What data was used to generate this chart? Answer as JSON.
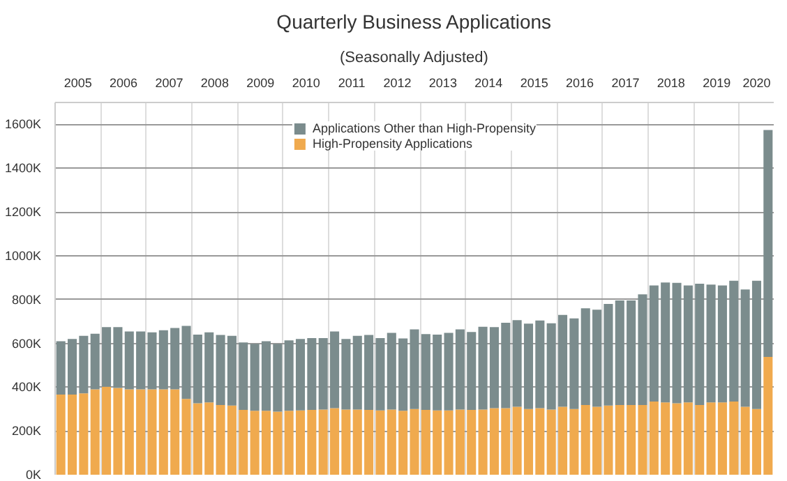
{
  "chart_data": {
    "type": "bar",
    "title": "Quarterly Business Applications",
    "subtitle": "(Seasonally Adjusted)",
    "x": [
      2005.125,
      2005.375,
      2005.625,
      2005.875,
      2006.125,
      2006.375,
      2006.625,
      2006.875,
      2007.125,
      2007.375,
      2007.625,
      2007.875,
      2008.125,
      2008.375,
      2008.625,
      2008.875,
      2009.125,
      2009.375,
      2009.625,
      2009.875,
      2010.125,
      2010.375,
      2010.625,
      2010.875,
      2011.125,
      2011.375,
      2011.625,
      2011.875,
      2012.125,
      2012.375,
      2012.625,
      2012.875,
      2013.125,
      2013.375,
      2013.625,
      2013.875,
      2014.125,
      2014.375,
      2014.625,
      2014.875,
      2015.125,
      2015.375,
      2015.625,
      2015.875,
      2016.125,
      2016.375,
      2016.625,
      2016.875,
      2017.125,
      2017.375,
      2017.625,
      2017.875,
      2018.125,
      2018.375,
      2018.625,
      2018.875,
      2019.125,
      2019.375,
      2019.625,
      2019.875,
      2020.125,
      2020.375,
      2020.625
    ],
    "stacked": true,
    "series": [
      {
        "name": "High-Propensity Applications",
        "color": "#f0aa4e",
        "values": [
          366,
          366,
          372,
          390,
          402,
          396,
          390,
          390,
          390,
          390,
          390,
          346,
          326,
          330,
          318,
          316,
          296,
          292,
          292,
          288,
          292,
          294,
          296,
          298,
          304,
          298,
          298,
          296,
          294,
          298,
          292,
          300,
          296,
          294,
          294,
          298,
          296,
          298,
          304,
          304,
          310,
          300,
          304,
          298,
          310,
          300,
          318,
          310,
          316,
          318,
          318,
          318,
          334,
          330,
          326,
          330,
          318,
          330,
          330,
          334,
          310,
          300,
          538
        ]
      },
      {
        "name": "Applications Other than High-Propensity",
        "color": "#7b8c8d",
        "values": [
          244,
          254,
          262,
          254,
          272,
          278,
          264,
          264,
          260,
          270,
          280,
          334,
          314,
          320,
          320,
          318,
          308,
          306,
          318,
          310,
          322,
          326,
          328,
          326,
          350,
          322,
          336,
          342,
          330,
          350,
          330,
          364,
          346,
          346,
          354,
          366,
          356,
          378,
          370,
          390,
          396,
          390,
          400,
          394,
          420,
          414,
          442,
          444,
          464,
          478,
          478,
          506,
          530,
          548,
          550,
          534,
          554,
          538,
          534,
          552,
          536,
          586,
          1036
        ]
      }
    ],
    "xlim": [
      2005,
      2020.75
    ],
    "xticks": [
      {
        "value": 2005,
        "label": null
      },
      {
        "value": 2005.5,
        "label": "2005"
      },
      {
        "value": 2006,
        "label": null
      },
      {
        "value": 2006.5,
        "label": "2006"
      },
      {
        "value": 2007,
        "label": null
      },
      {
        "value": 2007.5,
        "label": "2007"
      },
      {
        "value": 2008,
        "label": null
      },
      {
        "value": 2008.5,
        "label": "2008"
      },
      {
        "value": 2009,
        "label": null
      },
      {
        "value": 2009.5,
        "label": "2009"
      },
      {
        "value": 2010,
        "label": null
      },
      {
        "value": 2010.5,
        "label": "2010"
      },
      {
        "value": 2011,
        "label": null
      },
      {
        "value": 2011.5,
        "label": "2011"
      },
      {
        "value": 2012,
        "label": null
      },
      {
        "value": 2012.5,
        "label": "2012"
      },
      {
        "value": 2013,
        "label": null
      },
      {
        "value": 2013.5,
        "label": "2013"
      },
      {
        "value": 2014,
        "label": null
      },
      {
        "value": 2014.5,
        "label": "2014"
      },
      {
        "value": 2015,
        "label": null
      },
      {
        "value": 2015.5,
        "label": "2015"
      },
      {
        "value": 2016,
        "label": null
      },
      {
        "value": 2016.5,
        "label": "2016"
      },
      {
        "value": 2017,
        "label": null
      },
      {
        "value": 2017.5,
        "label": "2017"
      },
      {
        "value": 2018,
        "label": null
      },
      {
        "value": 2018.5,
        "label": "2018"
      },
      {
        "value": 2019,
        "label": null
      },
      {
        "value": 2019.5,
        "label": "2019"
      },
      {
        "value": 2020,
        "label": null
      },
      {
        "value": 2020.375,
        "label": "2020"
      }
    ],
    "ylim": [
      0,
      1700
    ],
    "yticks": [
      {
        "value": 0,
        "label": "0K"
      },
      {
        "value": 200,
        "label": "200K"
      },
      {
        "value": 400,
        "label": "400K"
      },
      {
        "value": 600,
        "label": "600K"
      },
      {
        "value": 800,
        "label": "800K"
      },
      {
        "value": 1000,
        "label": "1000K"
      },
      {
        "value": 1200,
        "label": "1200K"
      },
      {
        "value": 1400,
        "label": "1400K"
      },
      {
        "value": 1600,
        "label": "1600K"
      }
    ],
    "grid": true,
    "legend": "top"
  }
}
